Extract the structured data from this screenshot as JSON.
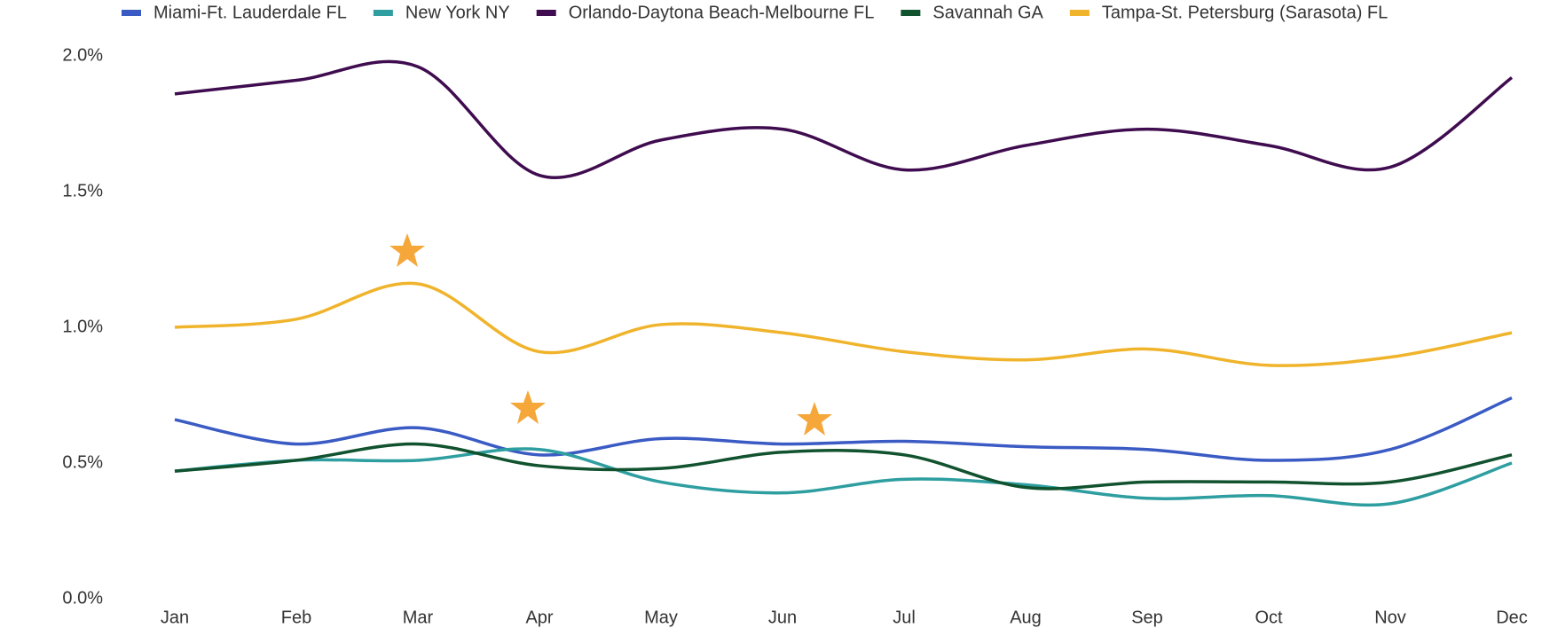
{
  "chart_data": {
    "type": "line",
    "categories": [
      "Jan",
      "Feb",
      "Mar",
      "Apr",
      "May",
      "Jun",
      "Jul",
      "Aug",
      "Sep",
      "Oct",
      "Nov",
      "Dec"
    ],
    "series": [
      {
        "name": "Miami-Ft. Lauderdale FL",
        "color": "#3b5bc4",
        "values": [
          0.66,
          0.57,
          0.63,
          0.53,
          0.59,
          0.57,
          0.58,
          0.56,
          0.55,
          0.51,
          0.55,
          0.74
        ]
      },
      {
        "name": "New York NY",
        "color": "#2e9ea0",
        "values": [
          0.47,
          0.51,
          0.51,
          0.55,
          0.43,
          0.39,
          0.44,
          0.42,
          0.37,
          0.38,
          0.35,
          0.5
        ]
      },
      {
        "name": "Orlando-Daytona Beach-Melbourne FL",
        "color": "#3f0c4f",
        "values": [
          1.86,
          1.91,
          1.96,
          1.56,
          1.69,
          1.73,
          1.58,
          1.67,
          1.73,
          1.67,
          1.59,
          1.92
        ]
      },
      {
        "name": "Savannah GA",
        "color": "#11522f",
        "values": [
          0.47,
          0.51,
          0.57,
          0.49,
          0.48,
          0.54,
          0.53,
          0.41,
          0.43,
          0.43,
          0.43,
          0.53
        ]
      },
      {
        "name": "Tampa-St. Petersburg (Sarasota) FL",
        "color": "#f0b42c",
        "values": [
          1.0,
          1.03,
          1.16,
          0.91,
          1.01,
          0.98,
          0.91,
          0.88,
          0.92,
          0.86,
          0.89,
          0.98
        ]
      }
    ],
    "ylim": [
      0,
      2.0
    ],
    "yticks": [
      {
        "value": 0,
        "label": "0.0%"
      },
      {
        "value": 0.5,
        "label": "0.5%"
      },
      {
        "value": 1.0,
        "label": "1.0%"
      },
      {
        "value": 1.5,
        "label": "1.5%"
      },
      {
        "value": 2.0,
        "label": "2.0%"
      }
    ],
    "legend": "top"
  }
}
